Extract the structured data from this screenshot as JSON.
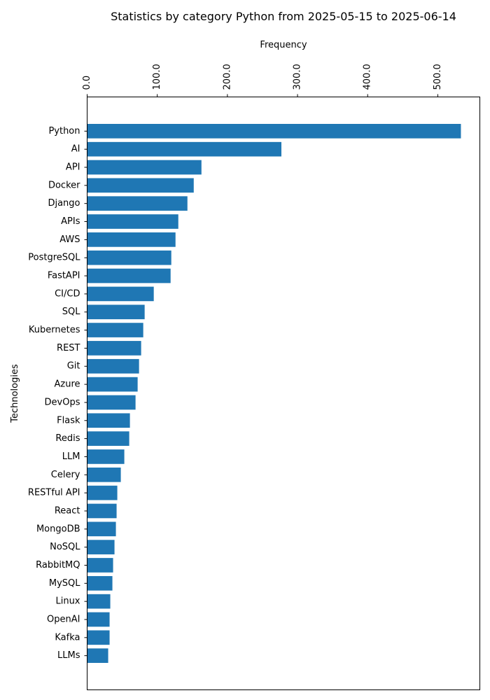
{
  "chart_data": {
    "type": "bar",
    "orientation": "horizontal",
    "title": "Statistics by category Python from 2025-05-15 to 2025-06-14",
    "xlabel": "Frequency",
    "ylabel": "Technologies",
    "x_axis_position": "top",
    "xlim": [
      0,
      560
    ],
    "xticks": [
      0,
      100,
      200,
      300,
      400,
      500
    ],
    "xtick_labels": [
      "0.0",
      "100.0",
      "200.0",
      "300.0",
      "400.0",
      "500.0"
    ],
    "grid": false,
    "legend": "none",
    "bar_color": "#1f77b4",
    "categories": [
      "Python",
      "AI",
      "API",
      "Docker",
      "Django",
      "APIs",
      "AWS",
      "PostgreSQL",
      "FastAPI",
      "CI/CD",
      "SQL",
      "Kubernetes",
      "REST",
      "Git",
      "Azure",
      "DevOps",
      "Flask",
      "Redis",
      "LLM",
      "Celery",
      "RESTful API",
      "React",
      "MongoDB",
      "NoSQL",
      "RabbitMQ",
      "MySQL",
      "Linux",
      "OpenAI",
      "Kafka",
      "LLMs"
    ],
    "values": [
      533,
      277,
      163,
      152,
      143,
      130,
      126,
      120,
      119,
      95,
      82,
      80,
      77,
      74,
      72,
      69,
      61,
      60,
      53,
      48,
      43,
      42,
      41,
      39,
      37,
      36,
      33,
      32,
      32,
      30
    ]
  }
}
